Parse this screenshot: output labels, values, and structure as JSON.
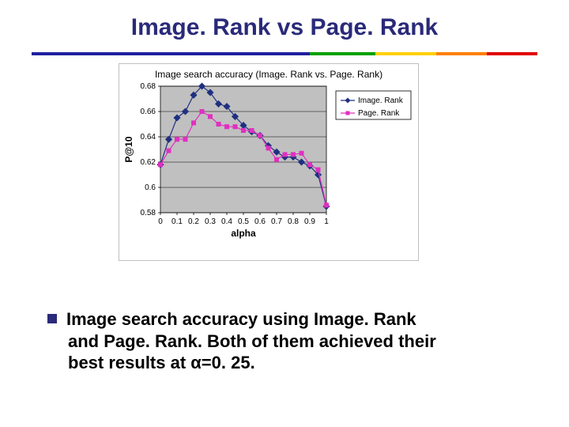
{
  "title": "Image. Rank vs Page. Rank",
  "caption_line1": "Image search accuracy using Image. Rank",
  "caption_line2": "and Page. Rank. Both of them achieved their",
  "caption_line3": "best results at α=0. 25.",
  "chart": {
    "type": "line",
    "title": "Image search accuracy (Image. Rank vs. Page. Rank)",
    "title_fontsize": 12,
    "xlabel": "alpha",
    "ylabel": "P@10",
    "label_fontsize": 12,
    "label_fontweight": "bold",
    "xlim": [
      0,
      1
    ],
    "ylim": [
      0.58,
      0.68
    ],
    "xtick_step": 0.1,
    "ytick_step": 0.02,
    "xticks": [
      "0",
      "0.1",
      "0.2",
      "0.3",
      "0.4",
      "0.5",
      "0.6",
      "0.7",
      "0.8",
      "0.9",
      "1"
    ],
    "yticks": [
      "0.58",
      "0.6",
      "0.62",
      "0.64",
      "0.66",
      "0.68"
    ],
    "tick_fontsize": 10,
    "plot_background": "#c0c0c0",
    "grid_color": "#000000",
    "outer_border_color": "#c0c0c0",
    "series": [
      {
        "name": "Image. Rank",
        "color": "#203080",
        "marker": "diamond",
        "marker_size": 5,
        "line_width": 1.2,
        "x": [
          0,
          0.05,
          0.1,
          0.15,
          0.2,
          0.25,
          0.3,
          0.35,
          0.4,
          0.45,
          0.5,
          0.55,
          0.6,
          0.65,
          0.7,
          0.75,
          0.8,
          0.85,
          0.9,
          0.95,
          1
        ],
        "y": [
          0.618,
          0.638,
          0.655,
          0.66,
          0.673,
          0.68,
          0.675,
          0.666,
          0.664,
          0.656,
          0.649,
          0.644,
          0.641,
          0.633,
          0.628,
          0.624,
          0.624,
          0.62,
          0.617,
          0.61,
          0.585
        ]
      },
      {
        "name": "Page. Rank",
        "color": "#e030c0",
        "marker": "square",
        "marker_size": 5,
        "line_width": 1.2,
        "x": [
          0,
          0.05,
          0.1,
          0.15,
          0.2,
          0.25,
          0.3,
          0.35,
          0.4,
          0.45,
          0.5,
          0.55,
          0.6,
          0.65,
          0.7,
          0.75,
          0.8,
          0.85,
          0.9,
          0.95,
          1
        ],
        "y": [
          0.618,
          0.629,
          0.638,
          0.638,
          0.651,
          0.66,
          0.656,
          0.65,
          0.648,
          0.648,
          0.645,
          0.645,
          0.641,
          0.631,
          0.622,
          0.626,
          0.626,
          0.627,
          0.618,
          0.614,
          0.586
        ]
      }
    ],
    "legend": {
      "position": "right",
      "border_color": "#000000",
      "background": "#ffffff",
      "fontsize": 10
    }
  }
}
